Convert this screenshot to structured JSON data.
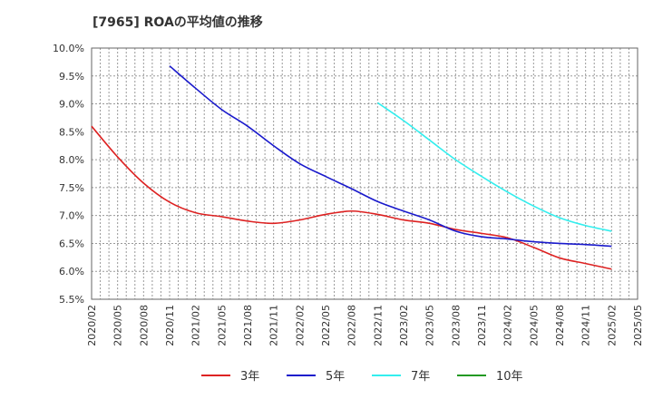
{
  "chart_data": {
    "type": "line",
    "title": "[7965]  ROAの平均値の推移",
    "xlabel": "",
    "ylabel": "",
    "x": [
      "2020/02",
      "2020/05",
      "2020/08",
      "2020/11",
      "2021/02",
      "2021/05",
      "2021/08",
      "2021/11",
      "2022/02",
      "2022/05",
      "2022/08",
      "2022/11",
      "2023/02",
      "2023/05",
      "2023/08",
      "2023/11",
      "2024/02",
      "2024/05",
      "2024/08",
      "2024/11",
      "2025/02",
      "2025/05"
    ],
    "ylim": [
      5.5,
      10.0
    ],
    "yticks": [
      "5.5%",
      "6.0%",
      "6.5%",
      "7.0%",
      "7.5%",
      "8.0%",
      "8.5%",
      "9.0%",
      "9.5%",
      "10.0%"
    ],
    "grid": true,
    "legend_position": "bottom",
    "series": [
      {
        "name": "3年",
        "color": "#dd2222",
        "values": [
          8.6,
          8.05,
          7.58,
          7.24,
          7.05,
          6.98,
          6.9,
          6.86,
          6.92,
          7.02,
          7.08,
          7.02,
          6.92,
          6.86,
          6.75,
          6.68,
          6.6,
          6.43,
          6.24,
          6.14,
          6.04,
          null
        ]
      },
      {
        "name": "5年",
        "color": "#1a1acc",
        "values": [
          null,
          null,
          null,
          9.68,
          9.28,
          8.9,
          8.6,
          8.25,
          7.93,
          7.7,
          7.48,
          7.25,
          7.08,
          6.92,
          6.72,
          6.62,
          6.58,
          6.53,
          6.5,
          6.48,
          6.45,
          null
        ]
      },
      {
        "name": "7年",
        "color": "#33eeee",
        "values": [
          null,
          null,
          null,
          null,
          null,
          null,
          null,
          null,
          null,
          null,
          null,
          9.02,
          8.7,
          8.35,
          8.0,
          7.7,
          7.42,
          7.17,
          6.96,
          6.82,
          6.72,
          null
        ]
      },
      {
        "name": "10年",
        "color": "#229922",
        "values": [
          null,
          null,
          null,
          null,
          null,
          null,
          null,
          null,
          null,
          null,
          null,
          null,
          null,
          null,
          null,
          null,
          null,
          null,
          null,
          null,
          null,
          null
        ]
      }
    ]
  }
}
